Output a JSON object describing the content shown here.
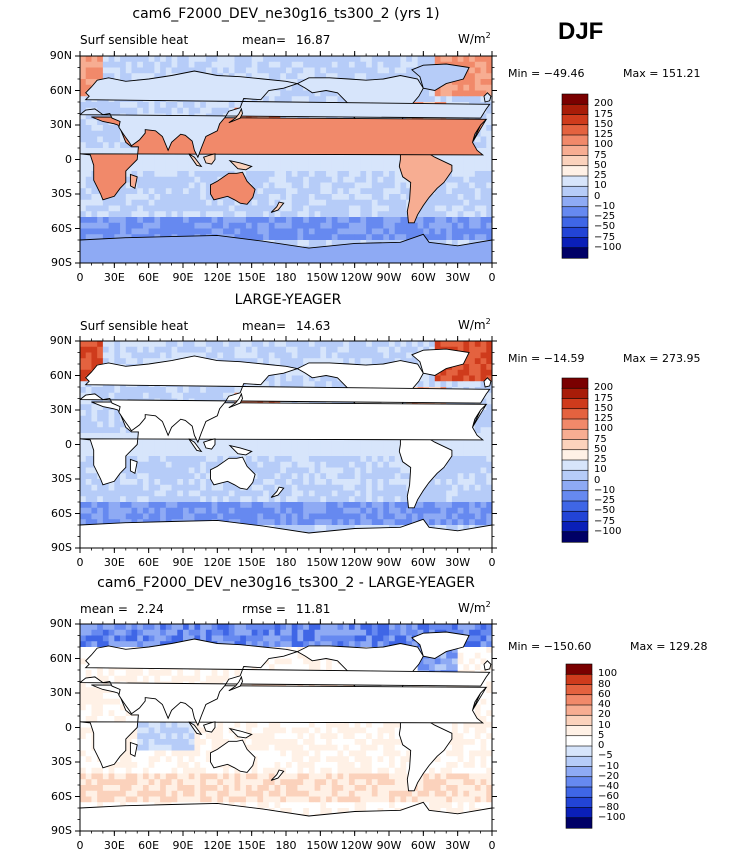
{
  "season": "DJF",
  "colors": {
    "abs_scale": [
      "#000066",
      "#0a1fb8",
      "#2244d6",
      "#3f66e6",
      "#6689f0",
      "#8eaaf4",
      "#b6ccf8",
      "#d7e5fb",
      "#fff1e6",
      "#fbd2bc",
      "#f7ad92",
      "#f1896a",
      "#e4623f",
      "#cf3b1c",
      "#a81c08",
      "#7a0000"
    ],
    "diff_scale": [
      "#000066",
      "#0a1fb8",
      "#2244d6",
      "#3f66e6",
      "#6689f0",
      "#8eaaf4",
      "#b6ccf8",
      "#d7e5fb",
      "#ffffff",
      "#fff1e6",
      "#fbd2bc",
      "#f7ad92",
      "#f1896a",
      "#e4623f",
      "#cf3b1c",
      "#7a0000"
    ],
    "land": "#ffffff",
    "coast": "#000000"
  },
  "chart_data": [
    {
      "type": "heatmap",
      "title": "cam6_F2000_DEV_ne30g16_ts300_2 (yrs 1)",
      "left_label": "Surf sensible heat",
      "stat1_label": "mean=",
      "stat1_value": "16.87",
      "stat2_label": "",
      "stat2_value": "",
      "units": "W/m",
      "units_sup": "2",
      "min_label": "Min = −49.46",
      "max_label": "Max = 151.21",
      "min": -49.46,
      "max": 151.21,
      "contour_levels": [
        "200",
        "175",
        "150",
        "125",
        "100",
        "75",
        "50",
        "25",
        "10",
        "0",
        "−10",
        "−25",
        "−50",
        "−75",
        "−100"
      ],
      "xticks": [
        "0",
        "30E",
        "60E",
        "90E",
        "120E",
        "150E",
        "180",
        "150W",
        "120W",
        "90W",
        "60W",
        "30W",
        "0"
      ],
      "yticks": [
        "90N",
        "60N",
        "30N",
        "0",
        "30S",
        "60S",
        "90S"
      ],
      "masked_land": false
    },
    {
      "type": "heatmap",
      "title": "LARGE-YEAGER",
      "left_label": "Surf sensible heat",
      "stat1_label": "mean=",
      "stat1_value": "14.63",
      "stat2_label": "",
      "stat2_value": "",
      "units": "W/m",
      "units_sup": "2",
      "min_label": "Min = −14.59",
      "max_label": "Max = 273.95",
      "min": -14.59,
      "max": 273.95,
      "contour_levels": [
        "200",
        "175",
        "150",
        "125",
        "100",
        "75",
        "50",
        "25",
        "10",
        "0",
        "−10",
        "−25",
        "−50",
        "−75",
        "−100"
      ],
      "xticks": [
        "0",
        "30E",
        "60E",
        "90E",
        "120E",
        "150E",
        "180",
        "150W",
        "120W",
        "90W",
        "60W",
        "30W",
        "0"
      ],
      "yticks": [
        "90N",
        "60N",
        "30N",
        "0",
        "30S",
        "60S",
        "90S"
      ],
      "masked_land": true
    },
    {
      "type": "heatmap",
      "title": "cam6_F2000_DEV_ne30g16_ts300_2 - LARGE-YEAGER",
      "left_label": "mean =",
      "stat1_label": "",
      "stat1_value": "2.24",
      "stat2_label": "rmse =",
      "stat2_value": "11.81",
      "units": "W/m",
      "units_sup": "2",
      "min_label": "Min = −150.60",
      "max_label": "Max = 129.28",
      "min": -150.6,
      "max": 129.28,
      "contour_levels": [
        "100",
        "80",
        "60",
        "40",
        "20",
        "10",
        "5",
        "0",
        "−5",
        "−10",
        "−20",
        "−40",
        "−60",
        "−80",
        "−100"
      ],
      "xticks": [
        "0",
        "30E",
        "60E",
        "90E",
        "120E",
        "150E",
        "180",
        "150W",
        "120W",
        "90W",
        "60W",
        "30W",
        "0"
      ],
      "yticks": [
        "90N",
        "60N",
        "30N",
        "0",
        "30S",
        "60S",
        "90S"
      ],
      "masked_land": true
    }
  ]
}
